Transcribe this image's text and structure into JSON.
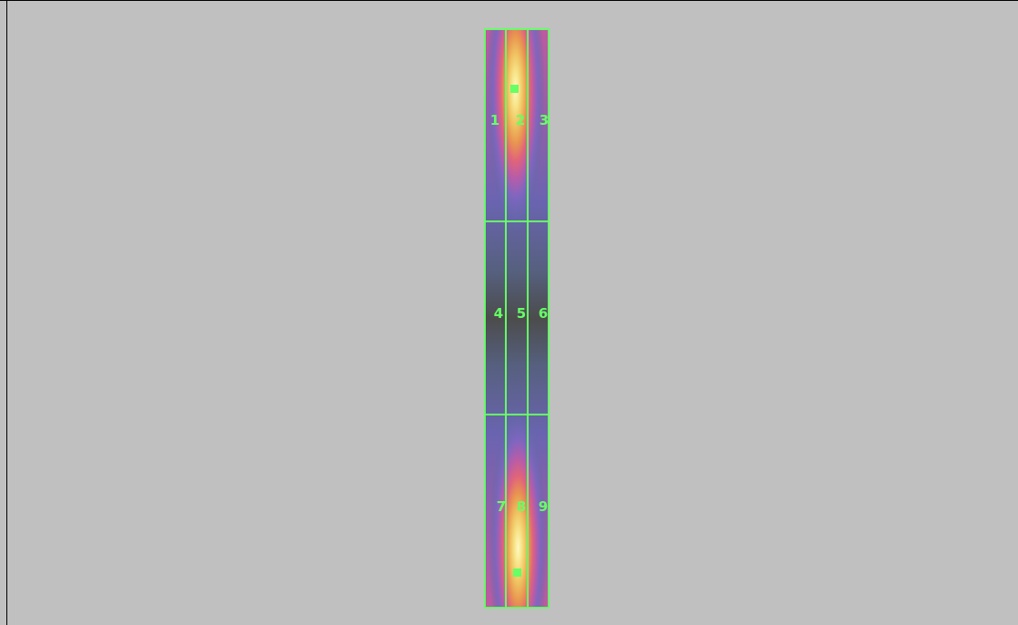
{
  "cells": [
    {
      "label": "1"
    },
    {
      "label": "2"
    },
    {
      "label": "3"
    },
    {
      "label": "4"
    },
    {
      "label": "5"
    },
    {
      "label": "6"
    },
    {
      "label": "7"
    },
    {
      "label": "8"
    },
    {
      "label": "9"
    }
  ],
  "colors": {
    "background": "#c0c0c0",
    "grid": "#66ff66",
    "hot": "#fff7b0",
    "warm": "#f0b050",
    "mid": "#e05a70",
    "cool": "#9a60c0",
    "cold": "#5a6aa8",
    "coldest": "#4c4c4c"
  },
  "markers": [
    "peak-top-marker",
    "peak-bottom-marker"
  ]
}
